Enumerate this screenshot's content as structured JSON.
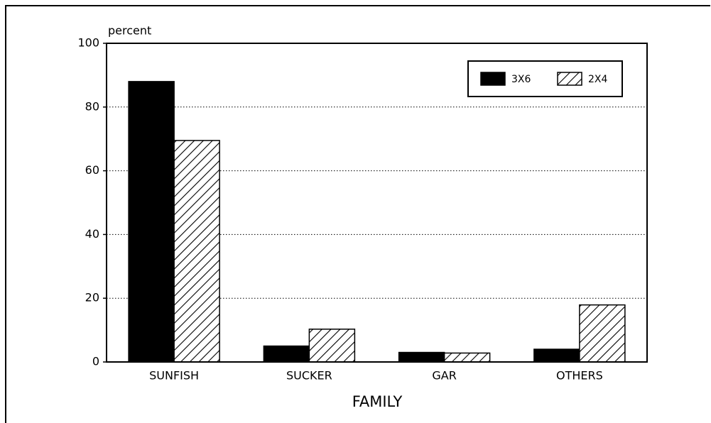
{
  "chart_data": {
    "type": "bar",
    "y_label": "percent",
    "x_label": "FAMILY",
    "categories": [
      "SUNFISH",
      "SUCKER",
      "GAR",
      "OTHERS"
    ],
    "series": [
      {
        "name": "3X6",
        "color": "#000000",
        "fill": "solid",
        "values": [
          88,
          5,
          3,
          4
        ]
      },
      {
        "name": "2X4",
        "color": "#000000",
        "fill": "hatch",
        "values": [
          69.5,
          10.3,
          2.8,
          17.9
        ]
      }
    ],
    "ylim": [
      0,
      100
    ],
    "yticks": [
      0,
      20,
      40,
      60,
      80,
      100
    ],
    "grid": true,
    "legend": "top-right"
  }
}
